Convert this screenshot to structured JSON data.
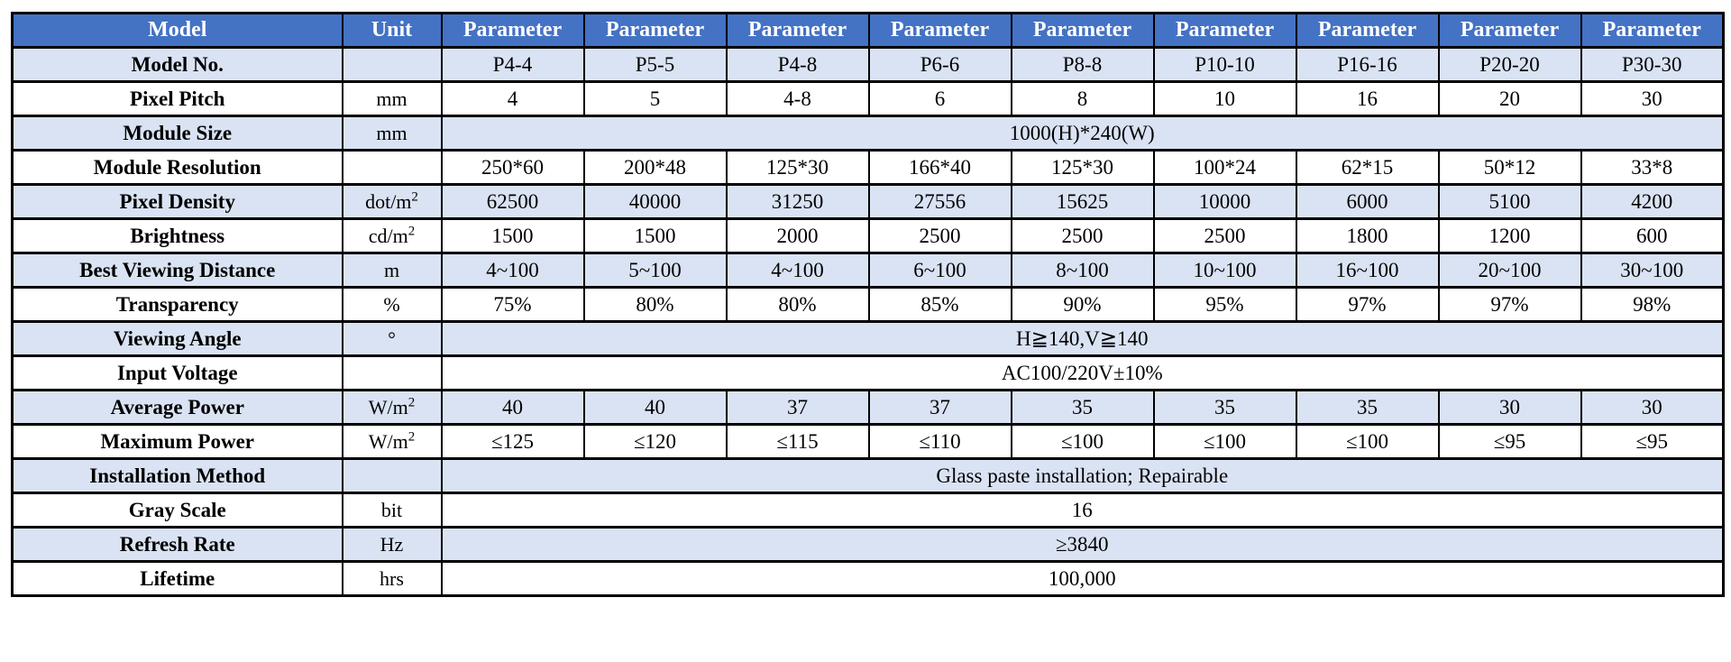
{
  "colors": {
    "header_bg": "#4472C4",
    "header_text": "#FFFFFF",
    "row_alt_bg": "#DAE3F3",
    "row_bg": "#FFFFFF",
    "border": "#000000",
    "text": "#000000",
    "page_bg": "#FFFFFF"
  },
  "table": {
    "header": {
      "model": "Model",
      "unit": "Unit",
      "parameter": "Parameter",
      "parameter_count": 9
    },
    "rows": [
      {
        "label": "Model No.",
        "unit": "",
        "sup": "",
        "values": [
          "P4-4",
          "P5-5",
          "P4-8",
          "P6-6",
          "P8-8",
          "P10-10",
          "P16-16",
          "P20-20",
          "P30-30"
        ]
      },
      {
        "label": "Pixel Pitch",
        "unit": "mm",
        "sup": "",
        "values": [
          "4",
          "5",
          "4-8",
          "6",
          "8",
          "10",
          "16",
          "20",
          "30"
        ]
      },
      {
        "label": "Module Size",
        "unit": "mm",
        "sup": "",
        "span_value": "1000(H)*240(W)"
      },
      {
        "label": "Module Resolution",
        "unit": "",
        "sup": "",
        "values": [
          "250*60",
          "200*48",
          "125*30",
          "166*40",
          "125*30",
          "100*24",
          "62*15",
          "50*12",
          "33*8"
        ]
      },
      {
        "label": "Pixel Density",
        "unit": "dot/m",
        "sup": "2",
        "values": [
          "62500",
          "40000",
          "31250",
          "27556",
          "15625",
          "10000",
          "6000",
          "5100",
          "4200"
        ]
      },
      {
        "label": "Brightness",
        "unit": "cd/m",
        "sup": "2",
        "values": [
          "1500",
          "1500",
          "2000",
          "2500",
          "2500",
          "2500",
          "1800",
          "1200",
          "600"
        ]
      },
      {
        "label": "Best Viewing Distance",
        "unit": "m",
        "sup": "",
        "values": [
          "4~100",
          "5~100",
          "4~100",
          "6~100",
          "8~100",
          "10~100",
          "16~100",
          "20~100",
          "30~100"
        ]
      },
      {
        "label": "Transparency",
        "unit": "%",
        "sup": "",
        "values": [
          "75%",
          "80%",
          "80%",
          "85%",
          "90%",
          "95%",
          "97%",
          "97%",
          "98%"
        ]
      },
      {
        "label": "Viewing Angle",
        "unit": "°",
        "sup": "",
        "span_value": "H≧140,V≧140"
      },
      {
        "label": "Input Voltage",
        "unit": "",
        "sup": "",
        "span_value": "AC100/220V±10%"
      },
      {
        "label": "Average Power",
        "unit": "W/m",
        "sup": "2",
        "values": [
          "40",
          "40",
          "37",
          "37",
          "35",
          "35",
          "35",
          "30",
          "30"
        ]
      },
      {
        "label": "Maximum Power",
        "unit": "W/m",
        "sup": "2",
        "values": [
          "≤125",
          "≤120",
          "≤115",
          "≤110",
          "≤100",
          "≤100",
          "≤100",
          "≤95",
          "≤95"
        ]
      },
      {
        "label": "Installation Method",
        "unit": "",
        "sup": "",
        "span_value": "Glass paste installation; Repairable"
      },
      {
        "label": "Gray Scale",
        "unit": "bit",
        "sup": "",
        "span_value": "16"
      },
      {
        "label": "Refresh Rate",
        "unit": "Hz",
        "sup": "",
        "span_value": "≥3840"
      },
      {
        "label": "Lifetime",
        "unit": "hrs",
        "sup": "",
        "span_value": "100,000"
      }
    ]
  }
}
